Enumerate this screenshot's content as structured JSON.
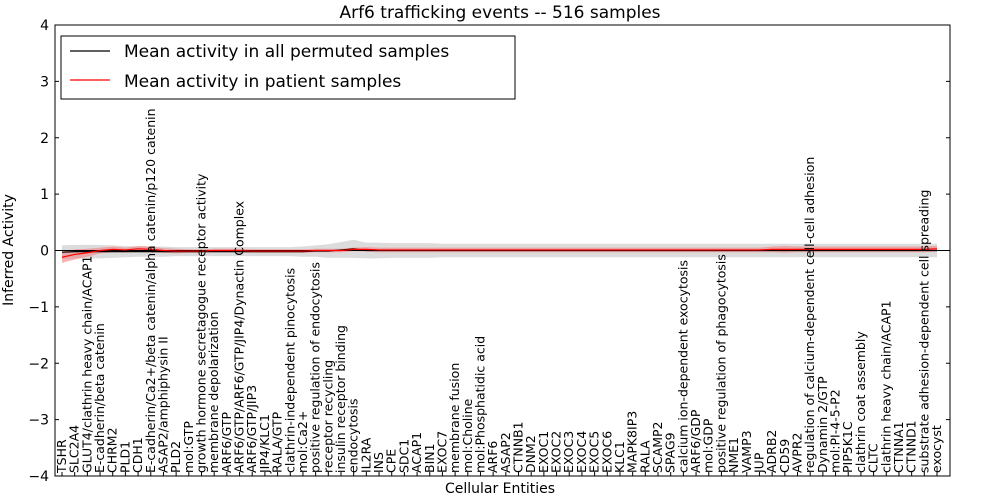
{
  "chart_data": {
    "type": "line",
    "title": "Arf6 trafficking events -- 516 samples",
    "xlabel": "Cellular Entities",
    "ylabel": "Inferred Activity",
    "ylim": [
      -4,
      4
    ],
    "yticks": [
      -4,
      -3,
      -2,
      -1,
      0,
      1,
      2,
      3,
      4
    ],
    "grid": false,
    "legend_position": "top-left",
    "categories": [
      "TSHR",
      "SLC2A4",
      "GLUT4/clathrin heavy chain/ACAP1",
      "E-cadherin/beta catenin",
      "CHRM2",
      "PLD1",
      "CDH1",
      "E-cadherin/Ca2+/beta catenin/alpha catenin/p120 catenin",
      "ASAP2/amphiphysin II",
      "PLD2",
      "mol:GTP",
      "growth hormone secretagogue receptor activity",
      "membrane depolarization",
      "ARF6/GTP",
      "ARF6/GTP/ARF6/GTP/JIP4/Dynactin Complex",
      "ARF6/GTP/JIP3",
      "JIP4/KLC1",
      "RALA/GTP",
      "clathrin-independent pinocytosis",
      "mol:Ca2+",
      "positive regulation of endocytosis",
      "receptor recycling",
      "insulin receptor binding",
      "endocytosis",
      "IL2RA",
      "INS",
      "CPE",
      "SDC1",
      "ACAP1",
      "BIN1",
      "EXOC7",
      "membrane fusion",
      "mol:Choline",
      "mol:Phosphatidic acid",
      "ARF6",
      "ASAP2",
      "CTNNB1",
      "DNM2",
      "EXOC1",
      "EXOC2",
      "EXOC3",
      "EXOC4",
      "EXOC5",
      "EXOC6",
      "KLC1",
      "MAPK8IP3",
      "RALA",
      "SCAMP2",
      "SPAG9",
      "calcium ion-dependent exocytosis",
      "ARF6/GDP",
      "mol:GDP",
      "positive regulation of phagocytosis",
      "NME1",
      "VAMP3",
      "JUP",
      "ADRB2",
      "CD59",
      "AVPR2",
      "regulation of calcium-dependent cell-cell adhesion",
      "Dynamin 2/GTP",
      "mol:PI-4-5-P2",
      "PIP5K1C",
      "clathrin coat assembly",
      "CLTC",
      "clathrin heavy chain/ACAP1",
      "CTNNA1",
      "CTNND1",
      "substrate adhesion-dependent cell spreading",
      "exocyst"
    ],
    "series": [
      {
        "name": "Mean activity in all permuted samples",
        "color": "#000000",
        "band_color": "#bfbfbf",
        "values": [
          -0.03,
          -0.02,
          -0.02,
          -0.02,
          -0.02,
          -0.02,
          -0.02,
          -0.02,
          -0.02,
          -0.02,
          -0.02,
          -0.02,
          -0.02,
          -0.02,
          -0.02,
          -0.02,
          -0.02,
          -0.02,
          -0.02,
          -0.02,
          -0.01,
          -0.01,
          0.01,
          0.03,
          0.0,
          0.0,
          0.0,
          0.0,
          0.0,
          0.0,
          0.0,
          0.0,
          0.0,
          0.0,
          0.0,
          0.0,
          0.0,
          0.0,
          0.0,
          0.0,
          0.0,
          0.0,
          0.0,
          0.0,
          0.0,
          0.0,
          0.0,
          0.0,
          0.0,
          0.0,
          0.0,
          0.0,
          0.0,
          0.0,
          0.0,
          0.0,
          0.0,
          0.0,
          0.0,
          0.0,
          0.0,
          0.0,
          0.0,
          0.0,
          0.0,
          0.0,
          0.0,
          0.0,
          0.0,
          0.0
        ],
        "band_halfwidth": [
          0.12,
          0.12,
          0.12,
          0.12,
          0.11,
          0.1,
          0.09,
          0.09,
          0.09,
          0.08,
          0.08,
          0.08,
          0.08,
          0.08,
          0.08,
          0.08,
          0.08,
          0.08,
          0.08,
          0.09,
          0.1,
          0.12,
          0.14,
          0.16,
          0.14,
          0.14,
          0.13,
          0.13,
          0.13,
          0.13,
          0.12,
          0.12,
          0.12,
          0.12,
          0.12,
          0.12,
          0.12,
          0.12,
          0.12,
          0.12,
          0.12,
          0.12,
          0.12,
          0.12,
          0.12,
          0.12,
          0.12,
          0.12,
          0.12,
          0.12,
          0.12,
          0.12,
          0.12,
          0.12,
          0.12,
          0.12,
          0.12,
          0.12,
          0.12,
          0.12,
          0.12,
          0.12,
          0.12,
          0.12,
          0.12,
          0.12,
          0.12,
          0.12,
          0.12,
          0.12
        ]
      },
      {
        "name": "Mean activity in patient samples",
        "color": "#ff0000",
        "band_color": "#f08080",
        "values": [
          -0.12,
          -0.07,
          -0.04,
          0.0,
          0.02,
          0.01,
          0.03,
          0.02,
          0.0,
          -0.01,
          -0.01,
          -0.01,
          0.0,
          0.0,
          0.0,
          -0.01,
          -0.01,
          -0.01,
          -0.01,
          -0.01,
          0.0,
          0.0,
          0.0,
          0.02,
          0.02,
          0.01,
          0.01,
          0.01,
          0.01,
          0.01,
          0.01,
          0.01,
          0.01,
          0.01,
          0.01,
          0.01,
          0.01,
          0.01,
          0.01,
          0.01,
          0.01,
          0.01,
          0.01,
          0.01,
          0.01,
          0.01,
          0.01,
          0.01,
          0.01,
          0.01,
          0.01,
          0.01,
          0.01,
          0.01,
          0.01,
          0.01,
          0.02,
          0.02,
          0.02,
          0.02,
          0.02,
          0.02,
          0.02,
          0.02,
          0.02,
          0.02,
          0.02,
          0.02,
          0.02,
          0.03
        ],
        "band_halfwidth": [
          0.1,
          0.09,
          0.07,
          0.05,
          0.05,
          0.04,
          0.05,
          0.05,
          0.04,
          0.04,
          0.03,
          0.03,
          0.03,
          0.03,
          0.03,
          0.03,
          0.03,
          0.03,
          0.03,
          0.03,
          0.03,
          0.03,
          0.03,
          0.03,
          0.04,
          0.04,
          0.04,
          0.04,
          0.04,
          0.04,
          0.04,
          0.04,
          0.04,
          0.04,
          0.04,
          0.04,
          0.04,
          0.04,
          0.04,
          0.04,
          0.04,
          0.04,
          0.04,
          0.04,
          0.04,
          0.04,
          0.04,
          0.04,
          0.04,
          0.04,
          0.04,
          0.04,
          0.04,
          0.04,
          0.04,
          0.04,
          0.05,
          0.06,
          0.05,
          0.05,
          0.05,
          0.05,
          0.05,
          0.05,
          0.05,
          0.05,
          0.05,
          0.05,
          0.05,
          0.05
        ]
      }
    ]
  }
}
